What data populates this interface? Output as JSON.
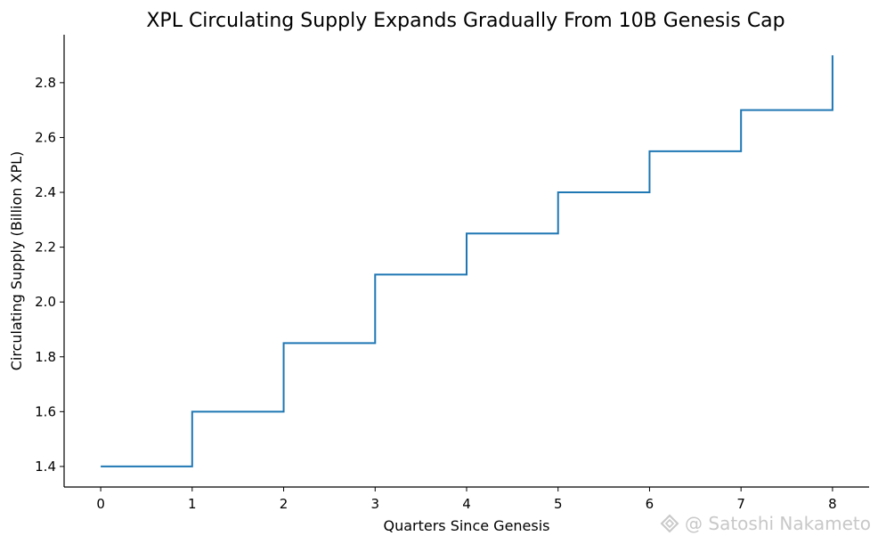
{
  "chart_data": {
    "type": "line",
    "step": "post",
    "title": "XPL Circulating Supply Expands Gradually From 10B Genesis Cap",
    "xlabel": "Quarters Since Genesis",
    "ylabel": "Circulating Supply (Billion XPL)",
    "x": [
      0,
      1,
      2,
      3,
      4,
      5,
      6,
      7,
      8
    ],
    "series": [
      {
        "values": [
          1.4,
          1.6,
          1.85,
          2.1,
          2.25,
          2.4,
          2.55,
          2.7,
          2.9
        ]
      }
    ],
    "xlim": [
      -0.4,
      8.4
    ],
    "ylim": [
      1.325,
      2.975
    ],
    "xticks": [
      "0",
      "1",
      "2",
      "3",
      "4",
      "5",
      "6",
      "7",
      "8"
    ],
    "yticks": [
      "1.4",
      "1.6",
      "1.8",
      "2.0",
      "2.2",
      "2.4",
      "2.6",
      "2.8"
    ],
    "grid": false,
    "spines": [
      "left",
      "bottom"
    ],
    "line_color": "#1f77b4"
  },
  "watermark": {
    "text": "@ Satoshi Nakameto",
    "icon": "diamond-logo-icon"
  }
}
